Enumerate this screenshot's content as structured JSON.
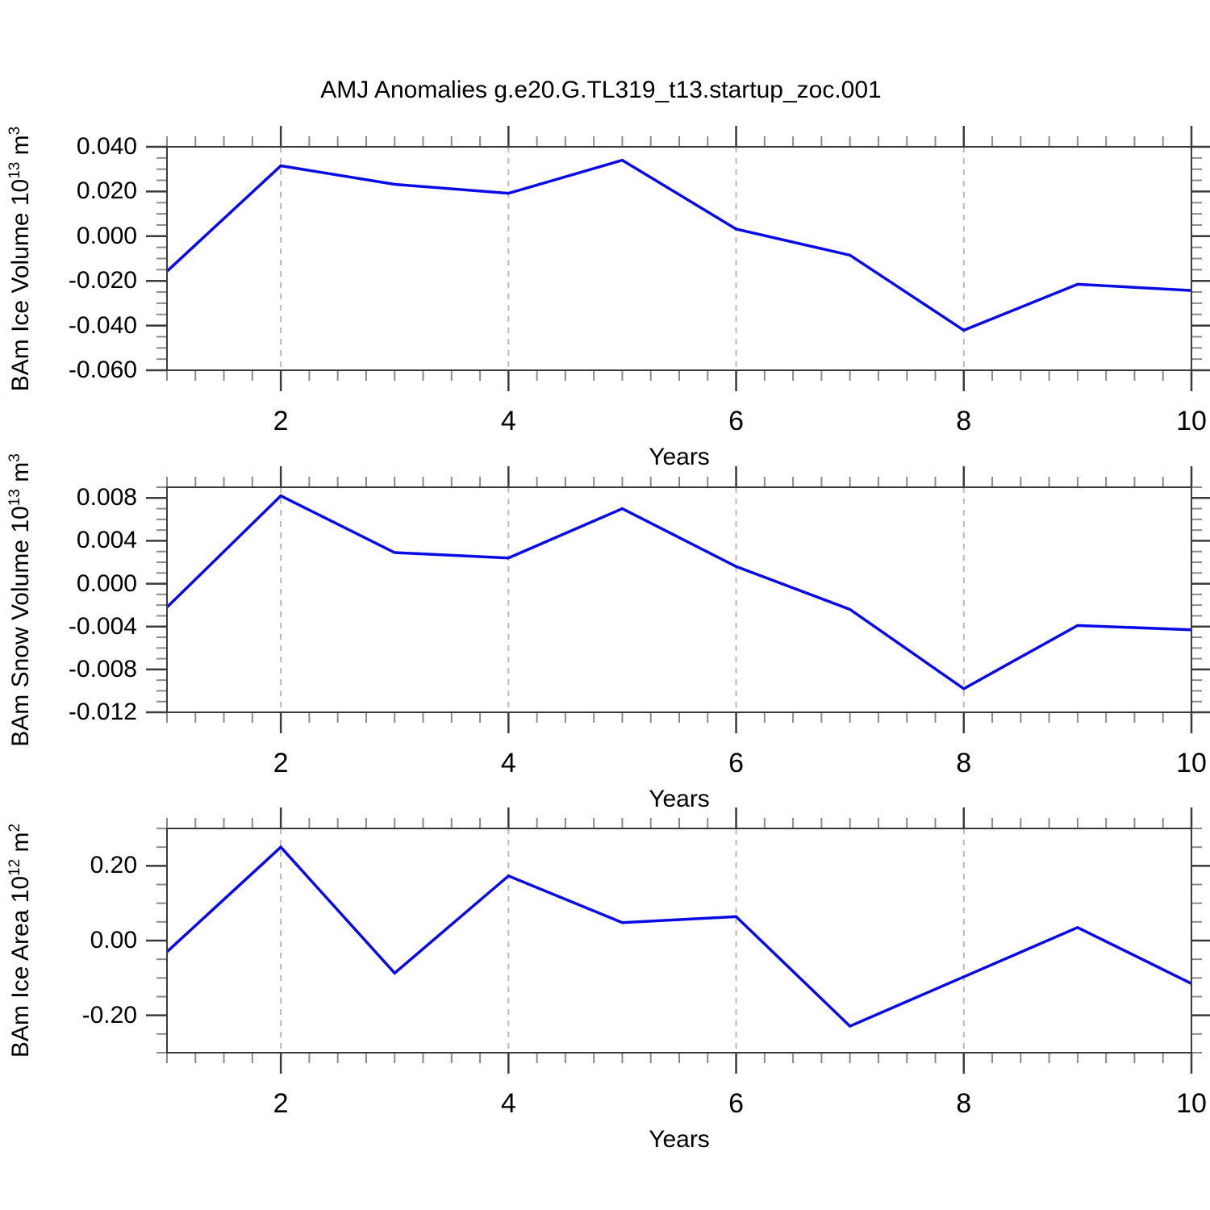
{
  "chart_data": {
    "type": "line",
    "title": "AMJ Anomalies g.e20.G.TL319_t13.startup_zoc.001",
    "xlabel": "Years",
    "x": [
      1,
      2,
      3,
      4,
      5,
      6,
      7,
      8,
      9,
      10
    ],
    "xlim": [
      1,
      10
    ],
    "x_major_ticks": [
      2,
      4,
      6,
      8,
      10
    ],
    "x_tick_labels": [
      "2",
      "4",
      "6",
      "8",
      "10"
    ],
    "x_minor_step": 0.25,
    "grid_x": [
      2,
      4,
      6,
      8
    ],
    "grid_style": "vertical-dashed",
    "legend": "none",
    "line_color": "#0a0ae6",
    "frame_color": "#3a3a3a",
    "minor_tick_color": "#8a8a8a",
    "gridline_color": "#b8b8b8",
    "charts": [
      {
        "name": "ice-volume",
        "ylabel": "BAm Ice Volume 10^13 m^3",
        "ylabel_segments": [
          {
            "t": "BAm Ice Volume 10",
            "sup": false
          },
          {
            "t": "13",
            "sup": true
          },
          {
            "t": " m",
            "sup": false
          },
          {
            "t": "3",
            "sup": true
          }
        ],
        "ylim": [
          -0.06,
          0.04
        ],
        "y_minor_step": 0.005,
        "y_major_ticks": [
          {
            "v": 0.04,
            "label": "0.040"
          },
          {
            "v": 0.02,
            "label": "0.020"
          },
          {
            "v": 0.0,
            "label": "0.000"
          },
          {
            "v": -0.02,
            "label": "-0.020"
          },
          {
            "v": -0.04,
            "label": "-0.040"
          },
          {
            "v": -0.06,
            "label": "-0.060"
          }
        ],
        "values": [
          -0.0157,
          0.0315,
          0.0232,
          0.0192,
          0.034,
          0.0032,
          -0.0085,
          -0.0421,
          -0.0215,
          -0.0243
        ]
      },
      {
        "name": "snow-volume",
        "ylabel": "BAm Snow Volume 10^13 m^3",
        "ylabel_segments": [
          {
            "t": "BAm Snow Volume 10",
            "sup": false
          },
          {
            "t": "13",
            "sup": true
          },
          {
            "t": " m",
            "sup": false
          },
          {
            "t": "3",
            "sup": true
          }
        ],
        "ylim": [
          -0.012,
          0.009
        ],
        "y_minor_step": 0.001,
        "y_major_ticks": [
          {
            "v": 0.008,
            "label": "0.008"
          },
          {
            "v": 0.004,
            "label": "0.004"
          },
          {
            "v": 0.0,
            "label": "0.000"
          },
          {
            "v": -0.004,
            "label": "-0.004"
          },
          {
            "v": -0.008,
            "label": "-0.008"
          },
          {
            "v": -0.012,
            "label": "-0.012"
          }
        ],
        "values": [
          -0.0022,
          0.0082,
          0.0029,
          0.0024,
          0.007,
          0.0016,
          -0.0024,
          -0.0098,
          -0.0039,
          -0.0043
        ]
      },
      {
        "name": "ice-area",
        "ylabel": "BAm Ice Area 10^12 m^2",
        "ylabel_segments": [
          {
            "t": "BAm Ice Area 10",
            "sup": false
          },
          {
            "t": "12",
            "sup": true
          },
          {
            "t": " m",
            "sup": false
          },
          {
            "t": "2",
            "sup": true
          }
        ],
        "ylim": [
          -0.3,
          0.3
        ],
        "y_minor_step": 0.05,
        "y_major_ticks": [
          {
            "v": 0.2,
            "label": "0.20"
          },
          {
            "v": 0.0,
            "label": "0.00"
          },
          {
            "v": -0.2,
            "label": "-0.20"
          }
        ],
        "values": [
          -0.03,
          0.25,
          -0.087,
          0.173,
          0.048,
          0.064,
          -0.229,
          -0.097,
          0.035,
          -0.115
        ]
      }
    ]
  }
}
